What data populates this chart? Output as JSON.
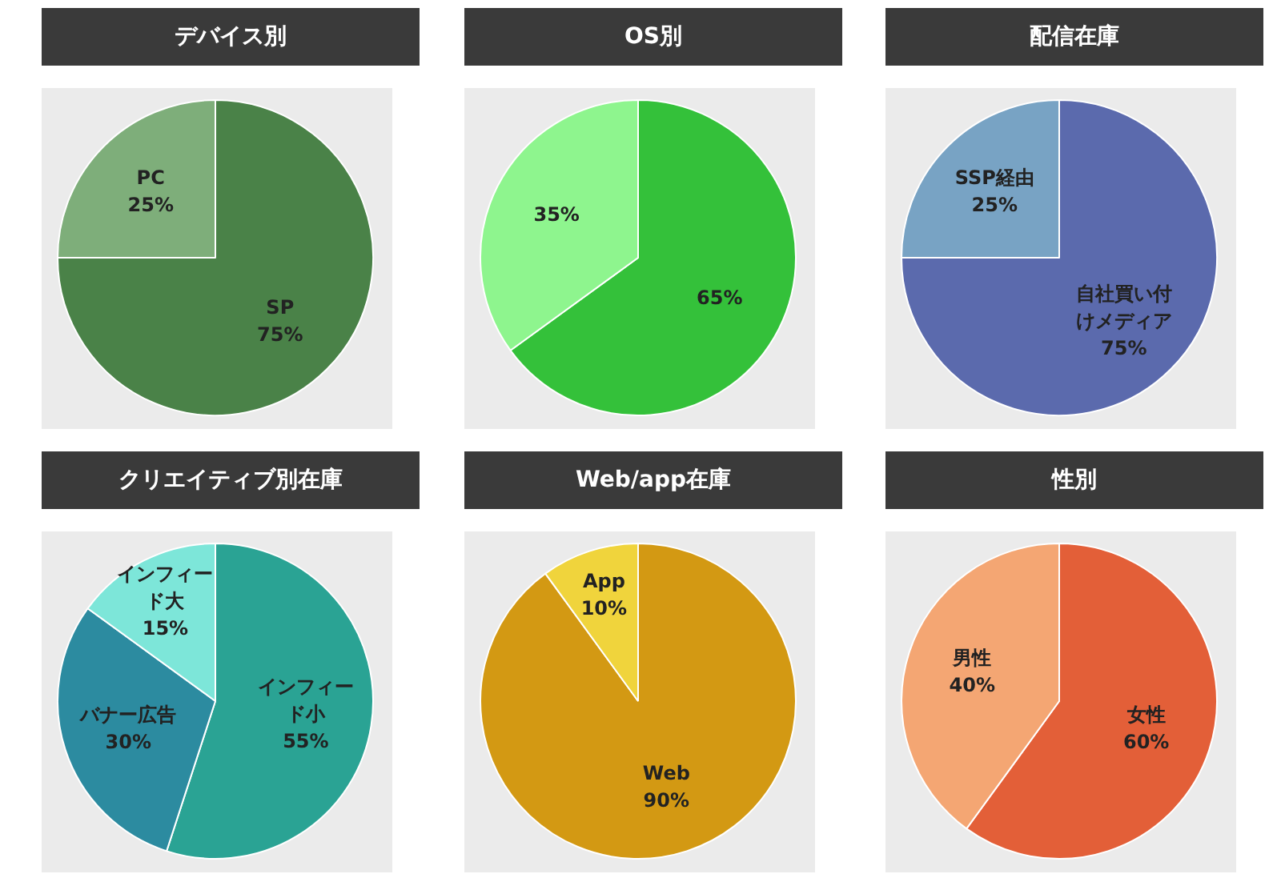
{
  "chart_data": [
    {
      "type": "pie",
      "title": "デバイス別",
      "categories": [
        "SP",
        "PC"
      ],
      "values": [
        75,
        25
      ],
      "value_labels": [
        "75%",
        "25%"
      ],
      "colors": [
        "#4a8248",
        "#7eae7a"
      ]
    },
    {
      "type": "pie",
      "title": "OS別",
      "categories": [
        null,
        null
      ],
      "values": [
        65,
        35
      ],
      "value_labels": [
        "65%",
        "35%"
      ],
      "colors": [
        "#34c13a",
        "#8ef58e"
      ]
    },
    {
      "type": "pie",
      "title": "配信在庫",
      "categories": [
        "自社買い付けメディア",
        "SSP経由"
      ],
      "values": [
        75,
        25
      ],
      "value_labels": [
        "75%",
        "25%"
      ],
      "colors": [
        "#5b6aad",
        "#78a3c4"
      ]
    },
    {
      "type": "pie",
      "title": "クリエイティブ別在庫",
      "categories": [
        "インフィード小",
        "バナー広告",
        "インフィード大"
      ],
      "values": [
        55,
        30,
        15
      ],
      "value_labels": [
        "55%",
        "30%",
        "15%"
      ],
      "colors": [
        "#2aa394",
        "#2c8ba0",
        "#7de6d9"
      ]
    },
    {
      "type": "pie",
      "title": "Web/app在庫",
      "categories": [
        "Web",
        "App"
      ],
      "values": [
        90,
        10
      ],
      "value_labels": [
        "90%",
        "10%"
      ],
      "colors": [
        "#d39913",
        "#f0d43c"
      ]
    },
    {
      "type": "pie",
      "title": "性別",
      "categories": [
        "女性",
        "男性"
      ],
      "values": [
        60,
        40
      ],
      "value_labels": [
        "60%",
        "40%"
      ],
      "colors": [
        "#e35f38",
        "#f4a673"
      ]
    }
  ]
}
